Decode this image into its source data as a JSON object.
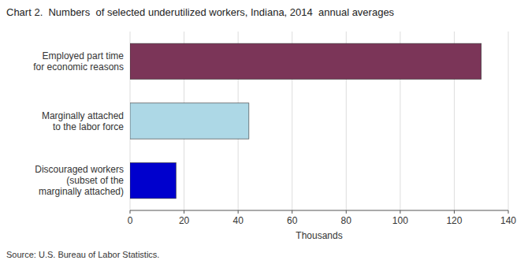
{
  "chart_data": {
    "type": "bar",
    "orientation": "horizontal",
    "title": "Chart 2.  Numbers  of selected underutilized workers, Indiana, 2014  annual averages",
    "categories": [
      "Employed part time\nfor economic reasons",
      "Marginally attached\nto the labor force",
      "Discouraged workers\n(subset of the\nmarginally attached)"
    ],
    "values": [
      130,
      44,
      17
    ],
    "colors": [
      "#7b3558",
      "#add8e6",
      "#0000cd"
    ],
    "xlabel": "Thousands",
    "xlim": [
      0,
      140
    ],
    "xticks": [
      0,
      20,
      40,
      60,
      80,
      100,
      120,
      140
    ],
    "grid": true,
    "source": "Source: U.S. Bureau of Labor Statistics."
  }
}
